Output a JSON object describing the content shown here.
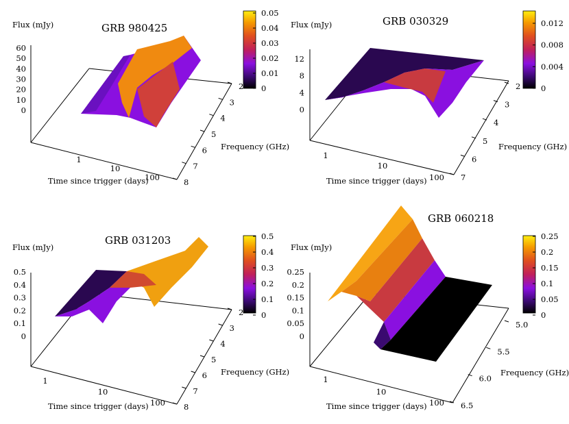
{
  "chart_data": [
    {
      "type": "surface",
      "title": "GRB 980425",
      "zlabel": "Flux (mJy)",
      "xlabel": "Time since trigger (days)",
      "ylabel": "Frequency (GHz)",
      "z_ticks": [
        "60",
        "50",
        "40",
        "30",
        "20",
        "10",
        "0"
      ],
      "zlim": [
        0,
        60
      ],
      "x_ticks": [
        "1",
        "10",
        "100"
      ],
      "y_ticks": [
        "2",
        "3",
        "4",
        "5",
        "6",
        "7",
        "8"
      ],
      "colorbar_ticks": [
        "0.05",
        "0.04",
        "0.03",
        "0.02",
        "0.01",
        "0"
      ],
      "colorbar_range": [
        0,
        0.055
      ]
    },
    {
      "type": "surface",
      "title": "GRB 030329",
      "zlabel": "Flux (mJy)",
      "xlabel": "Time since trigger (days)",
      "ylabel": "Frequency (GHz)",
      "z_ticks": [
        "12",
        "8",
        "4",
        "0"
      ],
      "zlim": [
        0,
        12
      ],
      "x_ticks": [
        "1",
        "10",
        "100"
      ],
      "y_ticks": [
        "2",
        "3",
        "4",
        "5",
        "6",
        "7"
      ],
      "colorbar_ticks": [
        "0.012",
        "0.008",
        "0.004",
        "0"
      ],
      "colorbar_range": [
        0,
        0.013
      ]
    },
    {
      "type": "surface",
      "title": "GRB 031203",
      "zlabel": "Flux (mJy)",
      "xlabel": "Time since trigger (days)",
      "ylabel": "Frequency (GHz)",
      "z_ticks": [
        "0.5",
        "0.4",
        "0.3",
        "0.2",
        "0.1",
        "0"
      ],
      "zlim": [
        0,
        0.5
      ],
      "x_ticks": [
        "1",
        "10",
        "100"
      ],
      "y_ticks": [
        "2",
        "3",
        "4",
        "5",
        "6",
        "7",
        "8"
      ],
      "colorbar_ticks": [
        "0.5",
        "0.4",
        "0.3",
        "0.2",
        "0.1",
        "0"
      ],
      "colorbar_range": [
        0,
        0.5
      ]
    },
    {
      "type": "surface",
      "title": "GRB 060218",
      "zlabel": "Flux (mJy)",
      "xlabel": "Time since trigger (days)",
      "ylabel": "Frequency (GHz)",
      "z_ticks": [
        "0.25",
        "0.2",
        "0.15",
        "0.1",
        "0.05",
        "0"
      ],
      "zlim": [
        0,
        0.25
      ],
      "x_ticks": [
        "1",
        "10",
        "100"
      ],
      "y_ticks": [
        "5.0",
        "5.5",
        "6.0",
        "6.5"
      ],
      "colorbar_ticks": [
        "0.25",
        "0.2",
        "0.15",
        "0.1",
        "0.05",
        "0"
      ],
      "colorbar_range": [
        0,
        0.25
      ]
    }
  ]
}
